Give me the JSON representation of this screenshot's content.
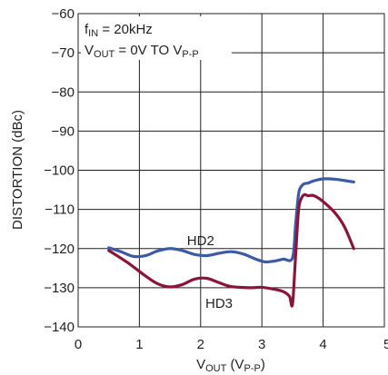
{
  "chart_data": {
    "type": "line",
    "xlabel": {
      "main": "V",
      "sub": "OUT",
      "rest": " (V",
      "sub2": "P-P",
      "end": ")"
    },
    "ylabel": "DISTORTION (dBc)",
    "xlim": [
      0,
      5
    ],
    "ylim": [
      -140,
      -60
    ],
    "x_ticks": [
      "0",
      "1",
      "2",
      "3",
      "4",
      "5"
    ],
    "y_ticks": [
      "−60",
      "−70",
      "−80",
      "−90",
      "−100",
      "−110",
      "−120",
      "−130",
      "−140"
    ],
    "grid": true,
    "annotations": {
      "line1": {
        "main": "f",
        "sub": "IN",
        "rest": " = 20kHz"
      },
      "line2": {
        "main": "V",
        "sub": "OUT",
        "rest": " = 0V TO V",
        "sub2": "P-P"
      }
    },
    "series": [
      {
        "name": "HD2",
        "color": "#3b5ba5",
        "x": [
          0.5,
          0.7,
          0.9,
          1.1,
          1.3,
          1.5,
          1.7,
          1.9,
          2.1,
          2.3,
          2.5,
          2.7,
          2.9,
          3.05,
          3.2,
          3.35,
          3.5,
          3.55,
          3.6,
          3.65,
          3.7,
          3.75,
          3.85,
          4.0,
          4.2,
          4.5
        ],
        "y": [
          -119.8,
          -120.8,
          -122.0,
          -121.8,
          -120.6,
          -120.0,
          -120.5,
          -121.5,
          -121.8,
          -121.2,
          -120.8,
          -121.4,
          -122.7,
          -123.4,
          -123.2,
          -122.7,
          -122.4,
          -114.0,
          -106.0,
          -104.0,
          -103.4,
          -103.3,
          -102.7,
          -102.2,
          -102.3,
          -103.0
        ]
      },
      {
        "name": "HD3",
        "color": "#8b1538",
        "x": [
          0.5,
          0.8,
          1.1,
          1.3,
          1.5,
          1.7,
          1.9,
          2.1,
          2.3,
          2.5,
          2.8,
          3.0,
          3.2,
          3.35,
          3.45,
          3.5,
          3.55,
          3.6,
          3.65,
          3.7,
          3.75,
          3.85,
          4.0,
          4.2,
          4.35,
          4.5
        ],
        "y": [
          -120.5,
          -123.5,
          -127.0,
          -129.0,
          -129.8,
          -129.2,
          -127.8,
          -127.6,
          -128.7,
          -129.7,
          -130.0,
          -129.9,
          -130.4,
          -131.0,
          -132.2,
          -134.2,
          -122.0,
          -110.0,
          -107.0,
          -106.2,
          -106.5,
          -106.5,
          -108.0,
          -111.0,
          -114.5,
          -120.0
        ]
      }
    ],
    "series_labels": [
      {
        "text": "HD2",
        "x": 2.0,
        "y": -118.0
      },
      {
        "text": "HD3",
        "x": 2.3,
        "y": -134.0
      }
    ]
  }
}
